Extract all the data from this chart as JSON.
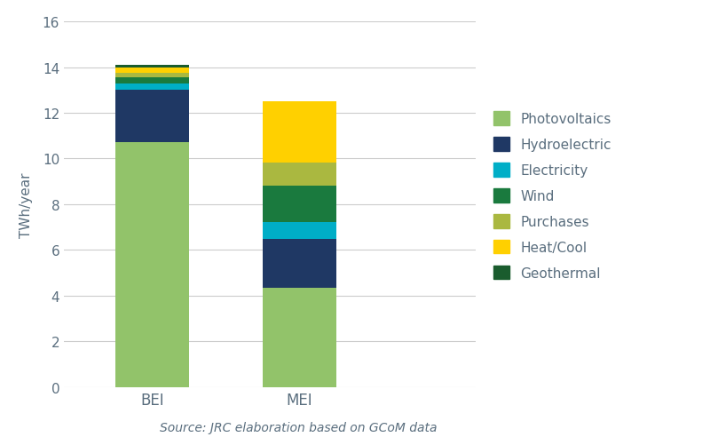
{
  "categories": [
    "BEI",
    "MEI"
  ],
  "series": [
    {
      "label": "Photovoltaics",
      "color": "#92c36a",
      "values": [
        10.7,
        4.35
      ]
    },
    {
      "label": "Hydroelectric",
      "color": "#1f3864",
      "values": [
        2.3,
        2.15
      ]
    },
    {
      "label": "Electricity",
      "color": "#00aec7",
      "values": [
        0.28,
        0.72
      ]
    },
    {
      "label": "Wind",
      "color": "#1a7a3e",
      "values": [
        0.28,
        1.6
      ]
    },
    {
      "label": "Purchases",
      "color": "#aab840",
      "values": [
        0.2,
        1.0
      ]
    },
    {
      "label": "Heat/Cool",
      "color": "#ffd000",
      "values": [
        0.22,
        2.68
      ]
    },
    {
      "label": "Geothermal",
      "color": "#1a5c2e",
      "values": [
        0.12,
        0.0
      ]
    }
  ],
  "ylabel": "TWh/year",
  "ylim": [
    0,
    16
  ],
  "yticks": [
    0,
    2,
    4,
    6,
    8,
    10,
    12,
    14,
    16
  ],
  "bar_width": 0.5,
  "x_positions": [
    1,
    2
  ],
  "x_labels": [
    "BEI",
    "MEI"
  ],
  "xlim": [
    0.4,
    3.2
  ],
  "background_color": "#ffffff",
  "grid_color": "#cccccc",
  "source_text": "Source: JRC elaboration based on GCoM data",
  "legend_order": [
    "Photovoltaics",
    "Hydroelectric",
    "Electricity",
    "Wind",
    "Purchases",
    "Heat/Cool",
    "Geothermal"
  ],
  "text_color": "#5a6e7e",
  "legend_fontsize": 11,
  "axis_fontsize": 11,
  "tick_fontsize": 11
}
